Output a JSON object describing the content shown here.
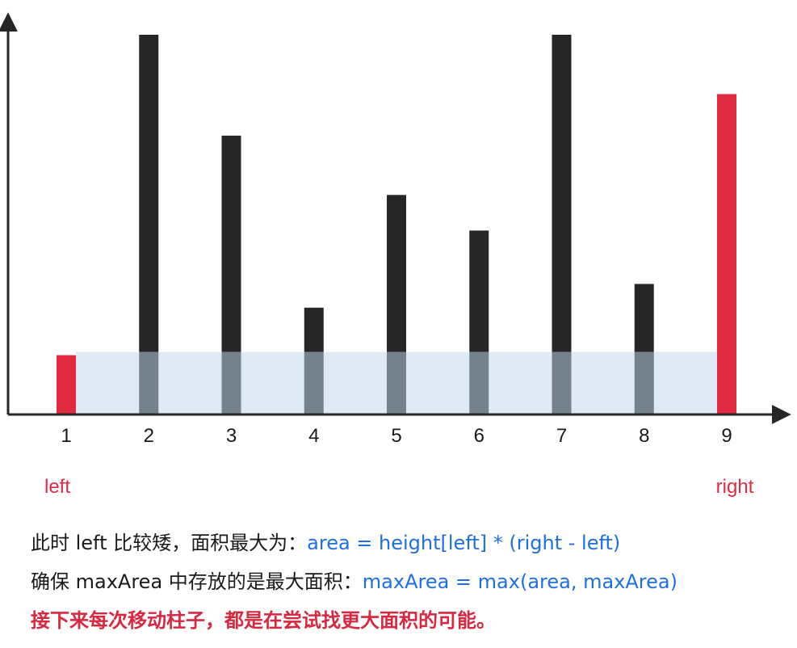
{
  "chart_data": {
    "type": "bar",
    "categories": [
      "1",
      "2",
      "3",
      "4",
      "5",
      "6",
      "7",
      "8",
      "9"
    ],
    "values": [
      1,
      6.4,
      4.7,
      1.8,
      3.7,
      3.1,
      6.4,
      2.2,
      5.4
    ],
    "highlighted": {
      "left_index": 0,
      "right_index": 8
    },
    "ylim": [
      0,
      6.4
    ],
    "colors": {
      "bar": "#262626",
      "pointer": "#e02a40",
      "area": "#dfeaf5",
      "overlap": "#74828b",
      "axis": "#262626",
      "formula": "#1f6fe0"
    }
  },
  "labels": {
    "left": "left",
    "right": "right"
  },
  "text": {
    "line1_prefix": "此时 left 比较矮，面积最大为：",
    "line1_formula": "area = height[left] * (right - left)",
    "line2_prefix": "确保 maxArea 中存放的是最大面积：",
    "line2_formula": "maxArea = max(area, maxArea)",
    "line3": "接下来每次移动柱子，都是在尝试找更大面积的可能。"
  }
}
